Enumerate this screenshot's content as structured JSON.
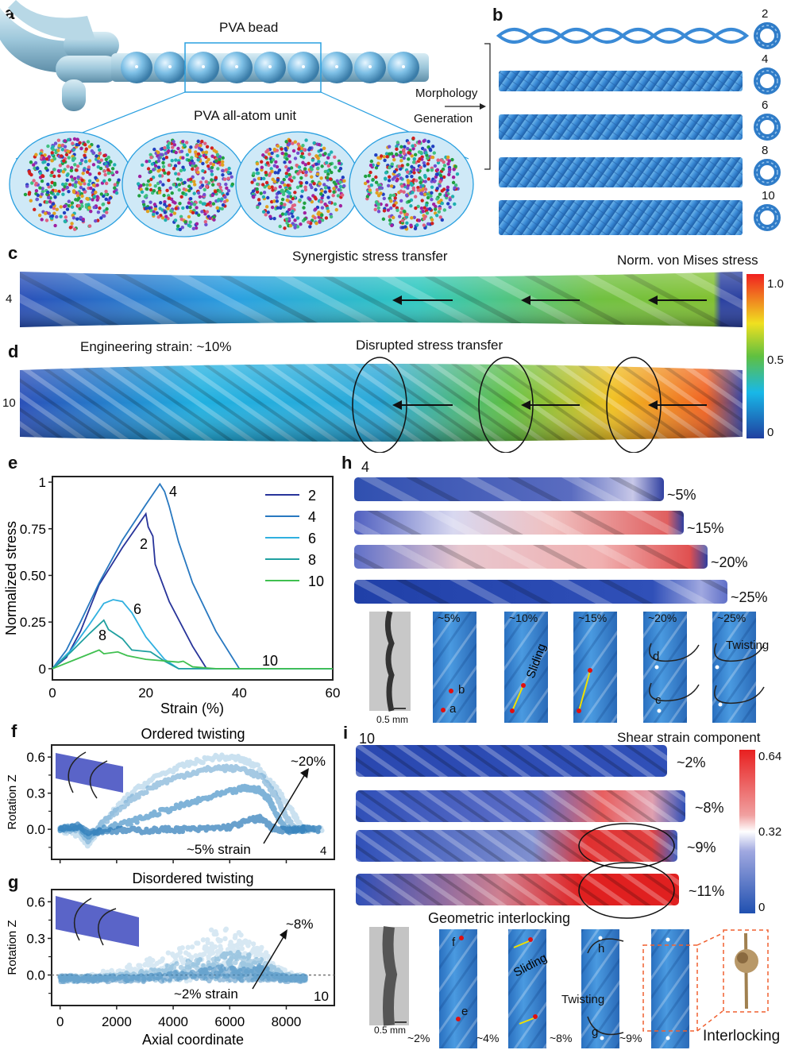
{
  "panel_labels": {
    "a": "a",
    "b": "b",
    "c": "c",
    "d": "d",
    "e": "e",
    "f": "f",
    "g": "g",
    "h": "h",
    "i": "i"
  },
  "panel_a": {
    "bead_title": "PVA bead",
    "unit_title": "PVA all-atom unit",
    "arrow_label_1": "Morphology",
    "arrow_label_2": "Generation"
  },
  "panel_b": {
    "strand_counts": [
      "2",
      "4",
      "6",
      "8",
      "10"
    ]
  },
  "panel_c": {
    "title": "Synergistic stress transfer",
    "strand_count": "4",
    "colorbar_title": "Norm. von Mises stress"
  },
  "panel_d": {
    "strain_label": "Engineering strain: ~10%",
    "title": "Disrupted stress transfer",
    "strand_count": "10"
  },
  "stress_colorbar": {
    "ticks": [
      "1.0",
      "0.5",
      "0"
    ],
    "colors": [
      "#2040a0",
      "#18b8e8",
      "#60c040",
      "#f0e020",
      "#f02020"
    ]
  },
  "panel_h": {
    "strand_count": "4",
    "strains": [
      "~5%",
      "~15%",
      "~20%",
      "~25%"
    ],
    "micrograph_scale": "0.5 mm",
    "snapshots": [
      "~5%",
      "~10%",
      "~15%",
      "~20%",
      "~25%"
    ],
    "point_labels": [
      "a",
      "b",
      "c",
      "d"
    ],
    "sliding": "Sliding",
    "twisting": "Twisting"
  },
  "panel_i": {
    "strand_count": "10",
    "colorbar_title": "Shear strain component",
    "colorbar_ticks": [
      "0.64",
      "0.32",
      "0"
    ],
    "colors": [
      "#2050b0",
      "#ffffff",
      "#e82020"
    ],
    "strains": [
      "~2%",
      "~8%",
      "~9%",
      "~11%"
    ],
    "subtitle": "Geometric interlocking",
    "micrograph_scale": "0.5 mm",
    "snapshots": [
      "~2%",
      "~4%",
      "~8%",
      "~9%"
    ],
    "point_labels": [
      "e",
      "f",
      "g",
      "h"
    ],
    "sliding": "Sliding",
    "twisting": "Twisting",
    "interlocking": "Interlocking"
  },
  "chart_data": [
    {
      "id": "e",
      "type": "line",
      "xlabel": "Strain (%)",
      "ylabel": "Normalized stress",
      "xlim": [
        0,
        60
      ],
      "ylim": [
        -0.06,
        1.03
      ],
      "xticks": [
        "0",
        "20",
        "40",
        "60"
      ],
      "yticks": [
        "0",
        "0.25",
        "0.50",
        "0.75",
        "1"
      ],
      "legend": "top-right",
      "series": [
        {
          "name": "2",
          "color": "#28349a",
          "x": [
            0,
            3,
            6,
            10,
            15,
            20,
            20.5,
            21.5,
            22,
            25,
            30,
            33,
            60
          ],
          "y": [
            0,
            0.06,
            0.2,
            0.45,
            0.65,
            0.83,
            0.76,
            0.71,
            0.56,
            0.36,
            0.12,
            0,
            0
          ]
        },
        {
          "name": "4",
          "color": "#2878c0",
          "x": [
            0,
            3,
            6,
            10,
            15,
            20,
            23,
            24,
            25,
            27,
            30,
            35,
            40,
            60
          ],
          "y": [
            0,
            0.1,
            0.25,
            0.46,
            0.69,
            0.88,
            0.99,
            0.95,
            0.87,
            0.68,
            0.46,
            0.2,
            0,
            0
          ]
        },
        {
          "name": "6",
          "color": "#30b0e0",
          "x": [
            0,
            4,
            8,
            11,
            13,
            15,
            17,
            20,
            24,
            27,
            60
          ],
          "y": [
            0,
            0.1,
            0.24,
            0.35,
            0.37,
            0.36,
            0.3,
            0.17,
            0.05,
            0,
            0
          ]
        },
        {
          "name": "8",
          "color": "#20a0a0",
          "x": [
            0,
            4,
            8,
            11,
            12,
            15,
            17,
            21,
            24,
            27,
            60
          ],
          "y": [
            0,
            0.09,
            0.19,
            0.26,
            0.21,
            0.16,
            0.1,
            0.09,
            0.04,
            0,
            0
          ]
        },
        {
          "name": "10",
          "color": "#40c050",
          "x": [
            0,
            4,
            8,
            10,
            11,
            14,
            16,
            20,
            27,
            28,
            30,
            35,
            60
          ],
          "y": [
            0,
            0.04,
            0.08,
            0.1,
            0.08,
            0.09,
            0.07,
            0.05,
            0.035,
            0.04,
            0.01,
            0,
            0
          ]
        }
      ],
      "annotations": [
        "4",
        "2",
        "6",
        "8",
        "10"
      ]
    },
    {
      "id": "f",
      "type": "scatter",
      "title": "Ordered twisting",
      "ylabel": "Rotation Z",
      "xlim": [
        -300,
        9700
      ],
      "ylim": [
        -0.25,
        0.7
      ],
      "yticks": [
        "0.0",
        "0.3",
        "0.6"
      ],
      "annotations": {
        "low": "~5% strain",
        "high": "~20%",
        "strands": "4"
      },
      "series": [
        {
          "color": "#2a7ab8",
          "x": [
            0,
            700,
            1000,
            2000,
            3000,
            4000,
            5000,
            6000,
            6800,
            7100,
            7500,
            8000,
            8500,
            9200
          ],
          "y": [
            0,
            0.03,
            -0.02,
            -0.01,
            -0.01,
            0,
            0,
            0.02,
            0.08,
            0.09,
            0.01,
            -0.01,
            0,
            0
          ]
        },
        {
          "color": "#4a94c8",
          "x": [
            0,
            700,
            1000,
            1500,
            2500,
            3500,
            4500,
            5500,
            6500,
            7000,
            7400,
            7700,
            8000,
            8700
          ],
          "y": [
            0,
            0.02,
            -0.05,
            0,
            0.06,
            0.14,
            0.21,
            0.28,
            0.34,
            0.33,
            0.25,
            0.1,
            0,
            0
          ]
        },
        {
          "color": "#7fb3d8",
          "x": [
            0,
            700,
            1000,
            1500,
            2500,
            3500,
            4500,
            5500,
            6500,
            7200,
            7700,
            8000,
            8300,
            9000
          ],
          "y": [
            0,
            0,
            -0.1,
            0.05,
            0.25,
            0.38,
            0.46,
            0.51,
            0.5,
            0.42,
            0.25,
            0.1,
            0,
            0
          ]
        },
        {
          "color": "#b5d5ea",
          "x": [
            0,
            700,
            1000,
            1500,
            2500,
            3500,
            4500,
            5500,
            6300,
            7000,
            7700,
            8200,
            8600,
            9300
          ],
          "y": [
            0,
            -0.05,
            -0.13,
            0.05,
            0.3,
            0.45,
            0.54,
            0.6,
            0.59,
            0.52,
            0.32,
            0.15,
            0,
            0
          ]
        }
      ]
    },
    {
      "id": "g",
      "type": "scatter",
      "title": "Disordered twisting",
      "xlabel": "Axial coordinate",
      "ylabel": "Rotation Z",
      "xlim": [
        -300,
        9700
      ],
      "ylim": [
        -0.25,
        0.7
      ],
      "xticks": [
        "0",
        "2000",
        "4000",
        "6000",
        "8000"
      ],
      "yticks": [
        "0.0",
        "0.3",
        "0.6"
      ],
      "reference_line": 0,
      "annotations": {
        "low": "~2% strain",
        "high": "~8%",
        "strands": "10"
      },
      "series": [
        {
          "color": "#2a7ab8",
          "x": [
            0,
            1000,
            2000,
            3000,
            4000,
            5000,
            6000,
            6500,
            7000,
            7500,
            8000,
            8700
          ],
          "y": [
            0,
            0,
            -0.01,
            0.01,
            0.03,
            0.06,
            0.08,
            0.06,
            0.08,
            0.04,
            0,
            0
          ]
        },
        {
          "color": "#5aa0cc",
          "x": [
            0,
            1000,
            2000,
            3000,
            4000,
            5000,
            6000,
            6500,
            7000,
            7500,
            8000,
            8700
          ],
          "y": [
            0,
            0,
            0.02,
            0.05,
            0.1,
            0.15,
            0.2,
            0.18,
            0.14,
            0.08,
            0.02,
            0
          ]
        },
        {
          "color": "#a8cde6",
          "x": [
            0,
            1000,
            2000,
            3000,
            4000,
            5000,
            5500,
            6000,
            6500,
            7000,
            7500,
            8000,
            8700
          ],
          "y": [
            0,
            0.01,
            0.06,
            0.12,
            0.2,
            0.3,
            0.4,
            0.36,
            0.32,
            0.25,
            0.14,
            0.04,
            0
          ]
        }
      ]
    }
  ]
}
